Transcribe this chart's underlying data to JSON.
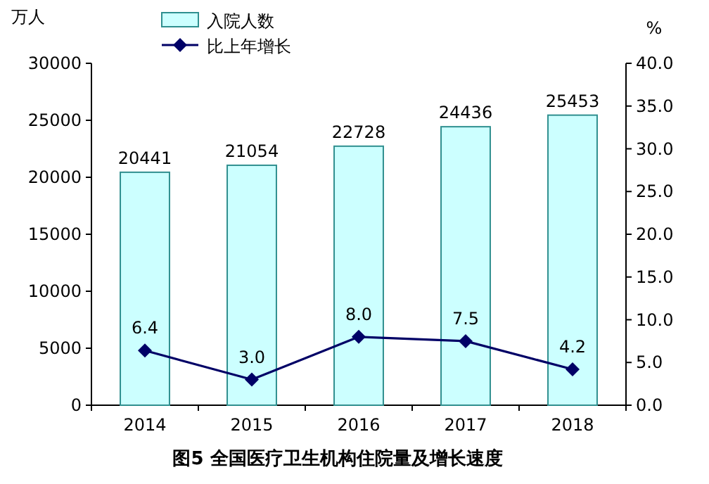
{
  "chart_data": {
    "type": "bar",
    "title": "图5 全国医疗卫生机构住院量及增长速度",
    "ylabel": "万人",
    "y2label": "%",
    "categories": [
      "2014",
      "2015",
      "2016",
      "2017",
      "2018"
    ],
    "series": [
      {
        "name": "入院人数",
        "color": "#ccffff",
        "values": [
          20441,
          21054,
          22728,
          24436,
          25453
        ]
      },
      {
        "name": "比上年增长",
        "type": "line",
        "axis": "y2",
        "color": "#000066",
        "values": [
          6.4,
          3.0,
          8.0,
          7.5,
          4.2
        ],
        "value_labels": [
          "6.4",
          "3.0",
          "8.0",
          "7.5",
          "4.2"
        ]
      }
    ],
    "ylim": [
      0,
      30000
    ],
    "yticks": [
      0,
      5000,
      10000,
      15000,
      20000,
      25000,
      30000
    ],
    "y2lim": [
      0,
      40
    ],
    "y2ticks": [
      {
        "value": 0,
        "label": "0.0"
      },
      {
        "value": 5,
        "label": "5.0"
      },
      {
        "value": 10,
        "label": "10.0"
      },
      {
        "value": 15,
        "label": "15.0"
      },
      {
        "value": 20,
        "label": "20.0"
      },
      {
        "value": 25,
        "label": "25.0"
      },
      {
        "value": 30,
        "label": "30.0"
      },
      {
        "value": 35,
        "label": "35.0"
      },
      {
        "value": 40,
        "label": "40.0"
      }
    ],
    "data_labels": true,
    "legend": "top left",
    "marker": "diamond",
    "line_style": "solid"
  }
}
